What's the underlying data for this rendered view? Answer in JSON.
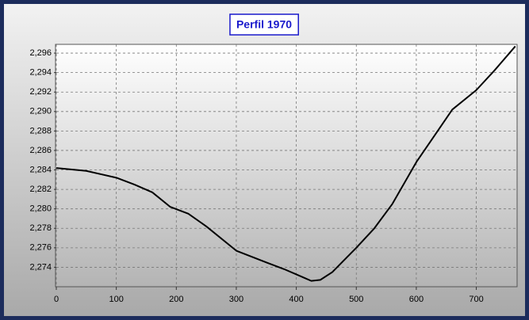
{
  "chart_data": {
    "type": "line",
    "title": "Perfil 1970",
    "x": [
      0,
      50,
      100,
      130,
      160,
      190,
      220,
      250,
      300,
      350,
      380,
      410,
      425,
      440,
      460,
      500,
      530,
      560,
      600,
      630,
      660,
      700,
      730,
      765
    ],
    "series": [
      {
        "color": "#000000",
        "values": [
          2.2842,
          2.2839,
          2.2832,
          2.2825,
          2.2817,
          2.2802,
          2.2795,
          2.2782,
          2.2757,
          2.2745,
          2.2738,
          2.273,
          2.2726,
          2.2727,
          2.2735,
          2.276,
          2.278,
          2.2805,
          2.2848,
          2.2875,
          2.2902,
          2.2922,
          2.2942,
          2.2967
        ]
      }
    ],
    "xlim": [
      0,
      768
    ],
    "xticks": [
      0,
      100,
      200,
      300,
      400,
      500,
      600,
      700
    ],
    "ylim": [
      2.272,
      2.2969
    ],
    "yticks": [
      {
        "value": 2.274,
        "label": "2,274"
      },
      {
        "value": 2.276,
        "label": "2,276"
      },
      {
        "value": 2.278,
        "label": "2,278"
      },
      {
        "value": 2.28,
        "label": "2,280"
      },
      {
        "value": 2.282,
        "label": "2,282"
      },
      {
        "value": 2.284,
        "label": "2,284"
      },
      {
        "value": 2.286,
        "label": "2,286"
      },
      {
        "value": 2.288,
        "label": "2,288"
      },
      {
        "value": 2.29,
        "label": "2,290"
      },
      {
        "value": 2.292,
        "label": "2,292"
      },
      {
        "value": 2.294,
        "label": "2,294"
      },
      {
        "value": 2.296,
        "label": "2,296"
      }
    ],
    "grid": true
  }
}
